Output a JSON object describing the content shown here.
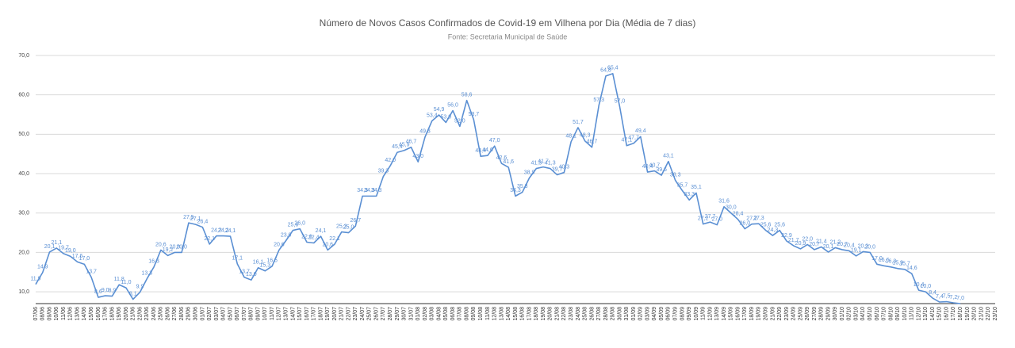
{
  "chart_data": {
    "type": "line",
    "title": "Número de Novos Casos Confirmados de Covid-19 em Vilhena por Dia (Média de 7 dias)",
    "subtitle": "Fonte: Secretaria Municipal de Saúde",
    "categories": [
      "07/06",
      "08/06",
      "09/06",
      "10/06",
      "11/06",
      "12/06",
      "13/06",
      "14/06",
      "15/06",
      "16/06",
      "17/06",
      "18/06",
      "19/06",
      "20/06",
      "21/06",
      "22/06",
      "23/06",
      "24/06",
      "25/06",
      "26/06",
      "27/06",
      "28/06",
      "29/06",
      "30/06",
      "01/07",
      "02/07",
      "03/07",
      "04/07",
      "05/07",
      "06/07",
      "07/07",
      "08/07",
      "09/07",
      "10/07",
      "11/07",
      "12/07",
      "13/07",
      "14/07",
      "15/07",
      "16/07",
      "17/07",
      "18/07",
      "19/07",
      "20/07",
      "21/07",
      "22/07",
      "23/07",
      "24/07",
      "25/07",
      "26/07",
      "27/07",
      "28/07",
      "29/07",
      "30/07",
      "31/07",
      "01/08",
      "02/08",
      "03/08",
      "04/08",
      "05/08",
      "06/08",
      "07/08",
      "08/08",
      "09/08",
      "10/08",
      "11/08",
      "12/08",
      "13/08",
      "14/08",
      "15/08",
      "16/08",
      "17/08",
      "18/08",
      "19/08",
      "20/08",
      "21/08",
      "22/08",
      "23/08",
      "24/08",
      "25/08",
      "26/08",
      "27/08",
      "28/08",
      "29/08",
      "30/08",
      "31/08",
      "01/09",
      "02/09",
      "03/09",
      "04/09",
      "05/09",
      "06/09",
      "07/09",
      "08/09",
      "09/09",
      "10/09",
      "11/09",
      "12/09",
      "13/09",
      "14/09",
      "15/09",
      "16/09",
      "17/09",
      "18/09",
      "19/09",
      "20/09",
      "21/09",
      "22/09",
      "23/09",
      "24/09",
      "25/09",
      "26/09",
      "27/09",
      "28/09",
      "29/09",
      "30/09",
      "01/10",
      "02/10",
      "03/10",
      "04/10",
      "05/10",
      "06/10",
      "07/10",
      "08/10",
      "09/10",
      "10/10",
      "11/10",
      "12/10",
      "13/10",
      "14/10",
      "15/10",
      "16/10",
      "17/10",
      "18/10",
      "19/10",
      "20/10",
      "21/10",
      "22/10",
      "23/10"
    ],
    "series": [
      {
        "name": "Média de 7 dias",
        "color": "#5a8fd3",
        "values": [
          11.9,
          14.9,
          20.1,
          21.1,
          19.7,
          19.0,
          17.6,
          17.0,
          13.7,
          8.6,
          9.0,
          8.9,
          11.8,
          11.0,
          8.1,
          9.9,
          13.3,
          16.3,
          20.6,
          19.2,
          20.0,
          20.0,
          27.5,
          27.1,
          26.4,
          22.1,
          24.2,
          24.2,
          24.1,
          17.1,
          13.7,
          13.0,
          16.1,
          15.3,
          16.5,
          20.6,
          23.0,
          25.6,
          26.0,
          22.6,
          22.4,
          24.1,
          20.6,
          22.1,
          25.2,
          25.0,
          26.7,
          34.3,
          34.3,
          34.3,
          39.3,
          42.0,
          45.4,
          45.9,
          46.7,
          43.0,
          49.3,
          53.4,
          54.9,
          53.0,
          56.0,
          52.0,
          58.6,
          53.7,
          44.4,
          44.6,
          47.0,
          42.6,
          41.6,
          34.3,
          35.3,
          38.9,
          41.3,
          41.7,
          41.3,
          39.7,
          40.3,
          48.1,
          51.7,
          48.3,
          46.7,
          57.3,
          64.8,
          65.4,
          57.0,
          47.1,
          47.7,
          49.4,
          40.4,
          40.7,
          39.6,
          43.1,
          38.3,
          35.7,
          33.3,
          35.1,
          27.2,
          27.7,
          27.0,
          31.6,
          30.0,
          28.4,
          26.0,
          27.2,
          27.3,
          25.6,
          24.3,
          25.6,
          22.9,
          21.7,
          20.9,
          22.0,
          20.7,
          21.4,
          20.1,
          21.2,
          20.7,
          20.4,
          19.1,
          20.2,
          20.0,
          17.0,
          16.6,
          16.3,
          15.9,
          15.7,
          14.6,
          10.4,
          10.0,
          8.4,
          7.4,
          7.5,
          7.2,
          7.0,
          null,
          null,
          null,
          null,
          null
        ],
        "value_labels": [
          "11,9",
          "14,9",
          "20,1",
          "21,1",
          "19,7",
          "19,0",
          "17,6",
          "17,0",
          "13,7",
          "8,6",
          "9,0",
          "8,9",
          "11,8",
          "11,0",
          "8,1",
          "9,9",
          "13,3",
          "16,3",
          "20,6",
          "19,2",
          "20,0",
          "20,0",
          "27,5",
          "27,1",
          "26,4",
          "22,1",
          "24,2",
          "24,2",
          "24,1",
          "17,1",
          "13,7",
          "13,0",
          "16,1",
          "15,3",
          "16,5",
          "20,6",
          "23,0",
          "25,6",
          "26,0",
          "22,6",
          "22,4",
          "24,1",
          "20,6",
          "22,1",
          "25,2",
          "25,0",
          "26,7",
          "34,3",
          "34,3",
          "34,3",
          "39,3",
          "42,0",
          "45,4",
          "45,9",
          "46,7",
          "43,0",
          "49,3",
          "53,4",
          "54,9",
          "53,0",
          "56,0",
          "52,0",
          "58,6",
          "53,7",
          "44,4",
          "44,6",
          "47,0",
          "42,6",
          "41,6",
          "34,3",
          "35,3",
          "38,9",
          "41,3",
          "41,7",
          "41,3",
          "39,7",
          "40,3",
          "48,1",
          "51,7",
          "48,3",
          "46,7",
          "57,3",
          "64,8",
          "65,4",
          "57,0",
          "47,1",
          "47,7",
          "49,4",
          "40,4",
          "40,7",
          "39,6",
          "43,1",
          "38,3",
          "35,7",
          "33,3",
          "35,1",
          "27,2",
          "27,7",
          "27,0",
          "31,6",
          "30,0",
          "28,4",
          "26,0",
          "27,2",
          "27,3",
          "25,6",
          "24,3",
          "25,6",
          "22,9",
          "21,7",
          "20,9",
          "22,0",
          "20,7",
          "21,4",
          "20,1",
          "21,2",
          "20,7",
          "20,4",
          "19,1",
          "20,2",
          "20,0",
          "17,0",
          "16,6",
          "16,3",
          "15,9",
          "15,7",
          "14,6",
          "10,4",
          "10,0",
          "8,4",
          "7,4",
          "7,5",
          "7,2",
          "7,0",
          null,
          null,
          null,
          null,
          null
        ]
      }
    ],
    "ylim": [
      7,
      70
    ],
    "yticks": [
      {
        "value": 10,
        "label": "10,0"
      },
      {
        "value": 20,
        "label": "20,0"
      },
      {
        "value": 30,
        "label": "30,0"
      },
      {
        "value": 40,
        "label": "40,0"
      },
      {
        "value": 50,
        "label": "50,0"
      },
      {
        "value": 60,
        "label": "60,0"
      },
      {
        "value": 70,
        "label": "70,0"
      }
    ],
    "grid": true
  }
}
